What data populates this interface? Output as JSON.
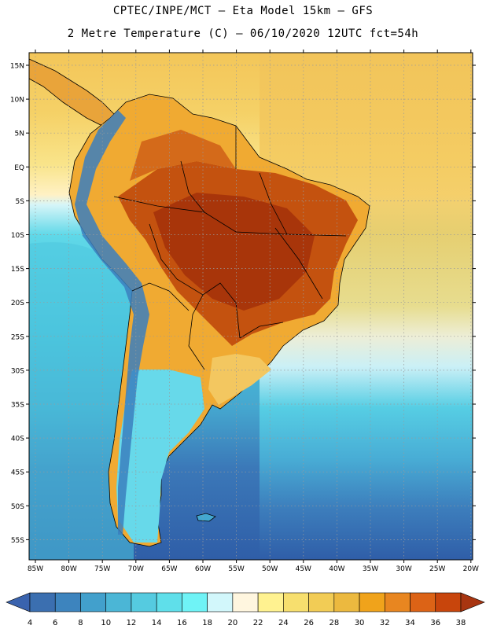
{
  "title": {
    "line1": "CPTEC/INPE/MCT –  Eta Model 15km – GFS",
    "line2": "2 Metre Temperature (C) – 06/10/2020 12UTC fct=54h"
  },
  "map": {
    "lat_labels": [
      "15N",
      "10N",
      "5N",
      "EQ",
      "5S",
      "10S",
      "15S",
      "20S",
      "25S",
      "30S",
      "35S",
      "40S",
      "45S",
      "50S",
      "55S"
    ],
    "lon_labels": [
      "85W",
      "80W",
      "75W",
      "70W",
      "65W",
      "60W",
      "55W",
      "50W",
      "45W",
      "40W",
      "35W",
      "30W",
      "25W",
      "20W"
    ]
  },
  "colorbar": {
    "labels": [
      "4",
      "6",
      "8",
      "10",
      "12",
      "14",
      "16",
      "18",
      "20",
      "22",
      "24",
      "26",
      "28",
      "30",
      "32",
      "34",
      "36",
      "38"
    ],
    "colors": [
      "#3b6fb0",
      "#3d84be",
      "#42a0cc",
      "#4bb6d6",
      "#55cbe0",
      "#5fdfea",
      "#6ff3f6",
      "#d2f7fb",
      "#fff6df",
      "#fff290",
      "#f7df6e",
      "#f2cc55",
      "#ecb93f",
      "#f0a31b",
      "#e88620",
      "#dc6316",
      "#c8450c",
      "#a83510"
    ]
  },
  "colors": {
    "ocean_south": "#2f5fa8",
    "ocean_mid": "#49c5dc",
    "ocean_north": "#f5cf5e",
    "land_hot": "#b5430f"
  }
}
